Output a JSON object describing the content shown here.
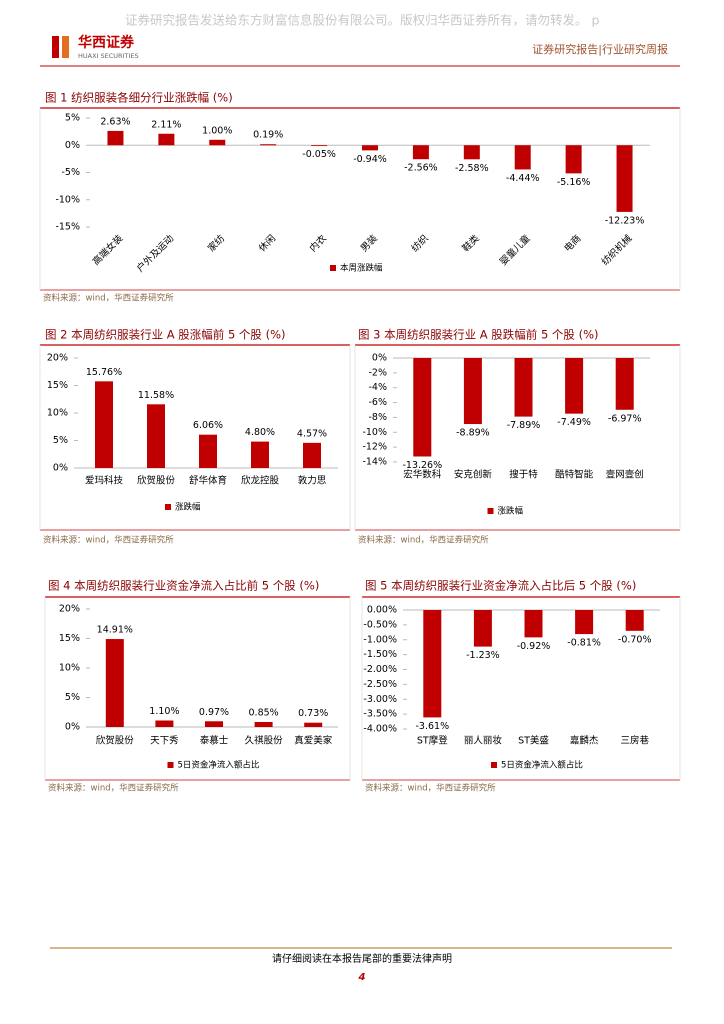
{
  "header": {
    "watermark": "证券研究报告发送给东方财富信息股份有限公司。版权归华西证券所有，请勿转发。 p",
    "logo_cn": "华西证券",
    "logo_en": "HUAXI SECURITIES",
    "report_type": "证券研究报告|行业研究周报"
  },
  "chart_data": [
    {
      "type": "bar",
      "title": "图 1  纺织服装各细分行业涨跌幅 (%)",
      "categories": [
        "高端女装",
        "户外及运动",
        "家纺",
        "休闲",
        "内衣",
        "男装",
        "纺织",
        "鞋类",
        "婴童儿童",
        "电商",
        "纺织机械"
      ],
      "series": [
        {
          "name": "本周涨跌幅",
          "color": "#c00000",
          "values": [
            2.63,
            2.11,
            1.0,
            0.19,
            -0.05,
            -0.94,
            -2.56,
            -2.58,
            -4.44,
            -5.16,
            -12.23
          ],
          "value_labels": [
            "2.63%",
            "2.11%",
            "1.00%",
            "0.19%",
            "-0.05%",
            "-0.94%",
            "-2.56%",
            "-2.58%",
            "-4.44%",
            "-5.16%",
            "-12.23%"
          ]
        }
      ],
      "ylim": [
        -15,
        5
      ],
      "yticks": [
        {
          "value": -15,
          "label": "-15%"
        },
        {
          "value": -10,
          "label": "-10%"
        },
        {
          "value": -5,
          "label": "-5%"
        },
        {
          "value": 0,
          "label": "0%"
        },
        {
          "value": 5,
          "label": "5%"
        }
      ],
      "source": "资料来源：wind，华西证券研究所"
    },
    {
      "type": "bar",
      "title": "图 2  本周纺织服装行业 A 股涨幅前 5 个股 (%)",
      "categories": [
        "爱玛科技",
        "欣贺股份",
        "舒华体育",
        "欣龙控股",
        "敦力思"
      ],
      "series": [
        {
          "name": "涨跌幅",
          "color": "#c00000",
          "values": [
            15.76,
            11.58,
            6.06,
            4.8,
            4.57
          ],
          "value_labels": [
            "15.76%",
            "11.58%",
            "6.06%",
            "4.80%",
            "4.57%"
          ]
        }
      ],
      "ylim": [
        0,
        20
      ],
      "yticks": [
        {
          "value": 0,
          "label": "0%"
        },
        {
          "value": 5,
          "label": "5%"
        },
        {
          "value": 10,
          "label": "10%"
        },
        {
          "value": 15,
          "label": "15%"
        },
        {
          "value": 20,
          "label": "20%"
        }
      ],
      "source": "资料来源：wind，华西证券研究所"
    },
    {
      "type": "bar",
      "title": "图 3  本周纺织服装行业 A 股跌幅前 5 个股 (%)",
      "categories": [
        "宏华数科",
        "安克创新",
        "搜于特",
        "酷特智能",
        "壹网壹创"
      ],
      "series": [
        {
          "name": "涨跌幅",
          "color": "#c00000",
          "values": [
            -13.26,
            -8.89,
            -7.89,
            -7.49,
            -6.97
          ],
          "value_labels": [
            "-13.26%",
            "-8.89%",
            "-7.89%",
            "-7.49%",
            "-6.97%"
          ]
        }
      ],
      "ylim": [
        -14,
        0
      ],
      "yticks": [
        {
          "value": -14,
          "label": "-14%"
        },
        {
          "value": -12,
          "label": "-12%"
        },
        {
          "value": -10,
          "label": "-10%"
        },
        {
          "value": -8,
          "label": "-8%"
        },
        {
          "value": -6,
          "label": "-6%"
        },
        {
          "value": -4,
          "label": "-4%"
        },
        {
          "value": -2,
          "label": "-2%"
        },
        {
          "value": 0,
          "label": "0%"
        }
      ],
      "source": "资料来源：wind，华西证券研究所"
    },
    {
      "type": "bar",
      "title": "图 4  本周纺织服装行业资金净流入占比前 5 个股 (%)",
      "categories": [
        "欣贺股份",
        "天下秀",
        "泰慕士",
        "久祺股份",
        "真爱美家"
      ],
      "series": [
        {
          "name": "5日资金净流入额占比",
          "color": "#c00000",
          "values": [
            14.91,
            1.1,
            0.97,
            0.85,
            0.73
          ],
          "value_labels": [
            "14.91%",
            "1.10%",
            "0.97%",
            "0.85%",
            "0.73%"
          ]
        }
      ],
      "ylim": [
        0,
        20
      ],
      "yticks": [
        {
          "value": 0,
          "label": "0%"
        },
        {
          "value": 5,
          "label": "5%"
        },
        {
          "value": 10,
          "label": "10%"
        },
        {
          "value": 15,
          "label": "15%"
        },
        {
          "value": 20,
          "label": "20%"
        }
      ],
      "source": "资料来源：wind，华西证券研究所"
    },
    {
      "type": "bar",
      "title": "图 5  本周纺织服装行业资金净流入占比后 5 个股 (%)",
      "categories": [
        "ST摩登",
        "丽人丽妆",
        "ST美盛",
        "嘉麟杰",
        "三房巷"
      ],
      "series": [
        {
          "name": "5日资金净流入额占比",
          "color": "#c00000",
          "values": [
            -3.61,
            -1.23,
            -0.92,
            -0.81,
            -0.7
          ],
          "value_labels": [
            "-3.61%",
            "-1.23%",
            "-0.92%",
            "-0.81%",
            "-0.70%"
          ]
        }
      ],
      "ylim": [
        -4,
        0
      ],
      "yticks": [
        {
          "value": -4,
          "label": "-4.00%"
        },
        {
          "value": -3.5,
          "label": "-3.50%"
        },
        {
          "value": -3,
          "label": "-3.00%"
        },
        {
          "value": -2.5,
          "label": "-2.50%"
        },
        {
          "value": -2,
          "label": "-2.00%"
        },
        {
          "value": -1.5,
          "label": "-1.50%"
        },
        {
          "value": -1,
          "label": "-1.00%"
        },
        {
          "value": -0.5,
          "label": "-0.50%"
        },
        {
          "value": 0,
          "label": "0.00%"
        }
      ],
      "source": "资料来源：wind，华西证券研究所"
    }
  ],
  "footer": {
    "disclaimer": "请仔细阅读在本报告尾部的重要法律声明",
    "page": 4
  }
}
